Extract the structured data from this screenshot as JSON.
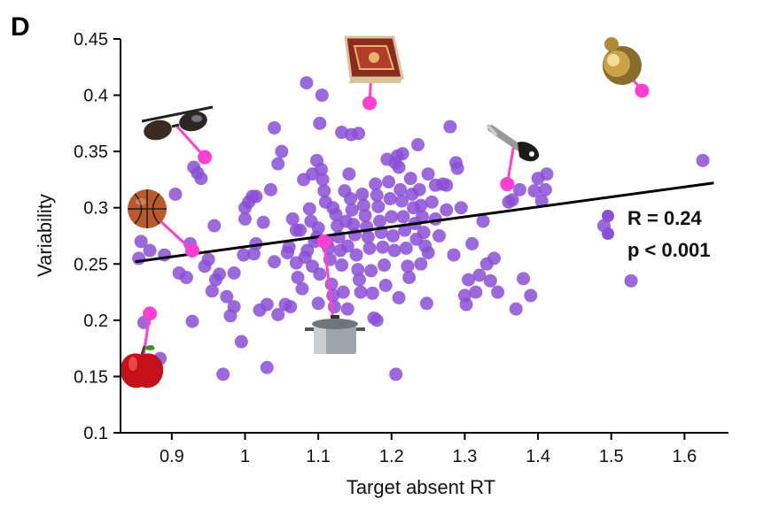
{
  "panel_label": "D",
  "chart_data": {
    "type": "scatter",
    "xlabel": "Target absent RT",
    "ylabel": "Variability",
    "xlim": [
      0.83,
      1.66
    ],
    "ylim": [
      0.1,
      0.45
    ],
    "xticks": [
      0.9,
      1.0,
      1.1,
      1.2,
      1.3,
      1.4,
      1.5,
      1.6
    ],
    "xtick_labels": [
      "0.9",
      "1",
      "1.1",
      "1.2",
      "1.3",
      "1.4",
      "1.5",
      "1.6"
    ],
    "yticks": [
      0.1,
      0.15,
      0.2,
      0.25,
      0.3,
      0.35,
      0.4,
      0.45
    ],
    "ytick_labels": [
      "0.1",
      "0.15",
      "0.2",
      "0.25",
      "0.3",
      "0.35",
      "0.4",
      "0.45"
    ],
    "grid": false,
    "point_color": "#8a4fd6",
    "highlight_color": "#ff3fd2",
    "fit_line": {
      "x": [
        0.85,
        1.64
      ],
      "y": [
        0.252,
        0.322
      ],
      "color": "#000000"
    },
    "stats": {
      "r_label": "R = 0.24",
      "p_label": "p < 0.001"
    },
    "legend_position": "right",
    "points": [
      [
        0.862,
        0.198
      ],
      [
        0.884,
        0.166
      ],
      [
        0.855,
        0.255
      ],
      [
        0.87,
        0.262
      ],
      [
        0.858,
        0.27
      ],
      [
        0.89,
        0.258
      ],
      [
        0.905,
        0.312
      ],
      [
        0.91,
        0.242
      ],
      [
        0.92,
        0.238
      ],
      [
        0.925,
        0.268
      ],
      [
        0.928,
        0.199
      ],
      [
        0.93,
        0.336
      ],
      [
        0.935,
        0.331
      ],
      [
        0.94,
        0.326
      ],
      [
        0.945,
        0.248
      ],
      [
        0.95,
        0.254
      ],
      [
        0.955,
        0.226
      ],
      [
        0.958,
        0.284
      ],
      [
        0.96,
        0.236
      ],
      [
        0.965,
        0.241
      ],
      [
        0.97,
        0.152
      ],
      [
        0.975,
        0.221
      ],
      [
        0.98,
        0.204
      ],
      [
        0.985,
        0.242
      ],
      [
        0.995,
        0.181
      ],
      [
        0.998,
        0.258
      ],
      [
        1.0,
        0.29
      ],
      [
        1.005,
        0.305
      ],
      [
        1.01,
        0.31
      ],
      [
        1.012,
        0.259
      ],
      [
        1.015,
        0.268
      ],
      [
        1.02,
        0.209
      ],
      [
        1.025,
        0.287
      ],
      [
        1.03,
        0.158
      ],
      [
        1.035,
        0.316
      ],
      [
        1.04,
        0.371
      ],
      [
        1.045,
        0.339
      ],
      [
        1.05,
        0.35
      ],
      [
        1.055,
        0.214
      ],
      [
        1.06,
        0.265
      ],
      [
        1.062,
        0.212
      ],
      [
        1.065,
        0.29
      ],
      [
        1.07,
        0.251
      ],
      [
        1.072,
        0.238
      ],
      [
        1.075,
        0.28
      ],
      [
        1.078,
        0.228
      ],
      [
        1.08,
        0.325
      ],
      [
        1.082,
        0.256
      ],
      [
        1.085,
        0.262
      ],
      [
        1.088,
        0.299
      ],
      [
        1.09,
        0.288
      ],
      [
        1.092,
        0.248
      ],
      [
        1.095,
        0.27
      ],
      [
        1.098,
        0.274
      ],
      [
        1.1,
        0.282
      ],
      [
        1.102,
        0.241
      ],
      [
        1.104,
        0.334
      ],
      [
        1.106,
        0.325
      ],
      [
        1.108,
        0.315
      ],
      [
        1.11,
        0.305
      ],
      [
        1.112,
        0.27
      ],
      [
        1.114,
        0.264
      ],
      [
        1.116,
        0.254
      ],
      [
        1.118,
        0.232
      ],
      [
        1.12,
        0.222
      ],
      [
        1.122,
        0.212
      ],
      [
        1.124,
        0.294
      ],
      [
        1.126,
        0.284
      ],
      [
        1.128,
        0.274
      ],
      [
        1.13,
        0.262
      ],
      [
        1.132,
        0.249
      ],
      [
        1.134,
        0.225
      ],
      [
        1.136,
        0.315
      ],
      [
        1.138,
        0.288
      ],
      [
        1.14,
        0.266
      ],
      [
        1.142,
        0.33
      ],
      [
        1.144,
        0.308
      ],
      [
        1.146,
        0.298
      ],
      [
        1.148,
        0.285
      ],
      [
        1.15,
        0.276
      ],
      [
        1.152,
        0.258
      ],
      [
        1.154,
        0.245
      ],
      [
        1.156,
        0.236
      ],
      [
        1.158,
        0.225
      ],
      [
        1.16,
        0.312
      ],
      [
        1.162,
        0.302
      ],
      [
        1.164,
        0.293
      ],
      [
        1.166,
        0.283
      ],
      [
        1.168,
        0.274
      ],
      [
        1.17,
        0.264
      ],
      [
        1.172,
        0.244
      ],
      [
        1.174,
        0.224
      ],
      [
        1.176,
        0.202
      ],
      [
        1.178,
        0.321
      ],
      [
        1.18,
        0.311
      ],
      [
        1.182,
        0.301
      ],
      [
        1.184,
        0.288
      ],
      [
        1.186,
        0.278
      ],
      [
        1.188,
        0.265
      ],
      [
        1.19,
        0.249
      ],
      [
        1.192,
        0.231
      ],
      [
        1.194,
        0.343
      ],
      [
        1.196,
        0.323
      ],
      [
        1.198,
        0.308
      ],
      [
        1.2,
        0.292
      ],
      [
        1.202,
        0.275
      ],
      [
        1.204,
        0.262
      ],
      [
        1.206,
        0.152
      ],
      [
        1.208,
        0.346
      ],
      [
        1.21,
        0.336
      ],
      [
        1.212,
        0.316
      ],
      [
        1.214,
        0.306
      ],
      [
        1.216,
        0.292
      ],
      [
        1.218,
        0.28
      ],
      [
        1.22,
        0.264
      ],
      [
        1.222,
        0.248
      ],
      [
        1.224,
        0.238
      ],
      [
        1.226,
        0.326
      ],
      [
        1.228,
        0.312
      ],
      [
        1.23,
        0.3
      ],
      [
        1.232,
        0.286
      ],
      [
        1.234,
        0.272
      ],
      [
        1.236,
        0.356
      ],
      [
        1.238,
        0.316
      ],
      [
        1.24,
        0.302
      ],
      [
        1.242,
        0.292
      ],
      [
        1.244,
        0.278
      ],
      [
        1.246,
        0.266
      ],
      [
        1.248,
        0.215
      ],
      [
        1.25,
        0.33
      ],
      [
        1.255,
        0.305
      ],
      [
        1.26,
        0.29
      ],
      [
        1.265,
        0.275
      ],
      [
        1.27,
        0.321
      ],
      [
        1.275,
        0.298
      ],
      [
        1.28,
        0.372
      ],
      [
        1.285,
        0.258
      ],
      [
        1.29,
        0.335
      ],
      [
        1.295,
        0.3
      ],
      [
        1.3,
        0.222
      ],
      [
        1.302,
        0.214
      ],
      [
        1.305,
        0.236
      ],
      [
        1.31,
        0.268
      ],
      [
        1.315,
        0.225
      ],
      [
        1.32,
        0.24
      ],
      [
        1.325,
        0.288
      ],
      [
        1.33,
        0.25
      ],
      [
        1.335,
        0.235
      ],
      [
        1.34,
        0.255
      ],
      [
        1.345,
        0.225
      ],
      [
        1.36,
        0.305
      ],
      [
        1.365,
        0.307
      ],
      [
        1.37,
        0.21
      ],
      [
        1.375,
        0.316
      ],
      [
        1.38,
        0.237
      ],
      [
        1.39,
        0.222
      ],
      [
        1.395,
        0.315
      ],
      [
        1.4,
        0.326
      ],
      [
        1.405,
        0.306
      ],
      [
        1.41,
        0.316
      ],
      [
        1.412,
        0.33
      ],
      [
        1.49,
        0.284
      ],
      [
        1.527,
        0.235
      ],
      [
        1.625,
        0.342
      ],
      [
        1.084,
        0.411
      ],
      [
        1.105,
        0.4
      ],
      [
        1.102,
        0.375
      ],
      [
        1.132,
        0.367
      ],
      [
        1.145,
        0.365
      ],
      [
        1.155,
        0.366
      ],
      [
        1.098,
        0.342
      ],
      [
        1.205,
        0.34
      ],
      [
        1.215,
        0.348
      ],
      [
        1.288,
        0.34
      ],
      [
        1.092,
        0.33
      ],
      [
        1.12,
        0.3
      ],
      [
        1.04,
        0.252
      ],
      [
        1.03,
        0.214
      ],
      [
        1.045,
        0.205
      ],
      [
        1.14,
        0.21
      ],
      [
        1.058,
        0.26
      ],
      [
        1.18,
        0.2
      ],
      [
        1.25,
        0.26
      ],
      [
        1.26,
        0.32
      ],
      [
        1.275,
        0.32
      ],
      [
        1.24,
        0.25
      ],
      [
        1.21,
        0.22
      ],
      [
        1.1,
        0.215
      ],
      [
        0.985,
        0.212
      ],
      [
        1.0,
        0.3
      ],
      [
        1.015,
        0.31
      ],
      [
        1.07,
        0.28
      ]
    ],
    "highlighted_points": [
      {
        "x": 0.87,
        "y": 0.206,
        "icon": "apple-icon"
      },
      {
        "x": 0.945,
        "y": 0.345,
        "icon": "sunglasses-icon"
      },
      {
        "x": 0.928,
        "y": 0.262,
        "icon": "basketball-icon"
      },
      {
        "x": 1.17,
        "y": 0.393,
        "icon": "rug-icon"
      },
      {
        "x": 1.108,
        "y": 0.27,
        "icon": "cooking-pot-icon"
      },
      {
        "x": 1.358,
        "y": 0.321,
        "icon": "peeler-icon"
      },
      {
        "x": 1.542,
        "y": 0.404,
        "icon": "doorknob-icon"
      }
    ]
  }
}
